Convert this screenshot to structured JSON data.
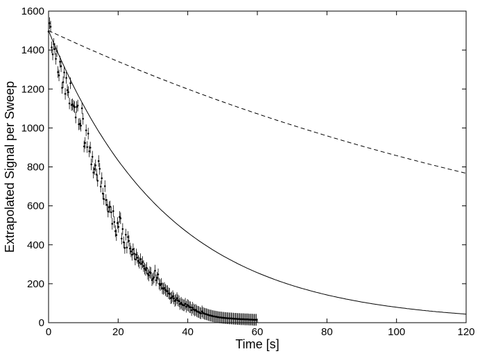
{
  "chart_data": {
    "type": "scatter",
    "title": "",
    "xlabel": "Time [s]",
    "ylabel": "Extrapolated Signal per Sweep",
    "xlim": [
      0,
      120
    ],
    "ylim": [
      0,
      1600
    ],
    "xticks": [
      0,
      20,
      40,
      60,
      80,
      100,
      120
    ],
    "yticks": [
      0,
      200,
      400,
      600,
      800,
      1000,
      1200,
      1400,
      1600
    ],
    "grid": false,
    "legend": "none",
    "colors": {
      "data": "#000000",
      "fit": "#000000",
      "reference": "#000000"
    },
    "series": [
      {
        "kind": "points-with-errorbars",
        "sampling_step_s": 0.3,
        "errorbar_halfwidth": 30,
        "values": [
          1495,
          1538,
          1520,
          1414,
          1378,
          1431,
          1405,
          1355,
          1395,
          1287,
          1270,
          1340,
          1317,
          1206,
          1235,
          1285,
          1175,
          1257,
          1194,
          1184,
          1126,
          1230,
          1118,
          1121,
          1113,
          1107,
          1054,
          1108,
          1115,
          1019,
          1021,
          1012,
          1101,
          1047,
          905,
          923,
          988,
          902,
          971,
          880,
          899,
          813,
          852,
          771,
          789,
          808,
          761,
          729,
          830,
          790,
          699,
          742,
          663,
          635,
          701,
          630,
          605,
          571,
          593,
          596,
          567,
          508,
          573,
          517,
          470,
          450,
          512,
          492,
          543,
          536,
          432,
          481,
          413,
          384,
          452,
          386,
          440,
          420,
          381,
          366,
          349,
          377,
          355,
          325,
          350,
          334,
          317,
          308,
          326,
          302,
          311,
          291,
          278,
          271,
          281,
          251,
          243,
          259,
          255,
          219,
          226,
          233,
          267,
          218,
          230,
          248,
          200,
          193,
          199,
          177,
          174,
          178,
          168,
          162,
          162,
          151,
          148,
          126,
          129,
          136,
          125,
          112,
          117,
          126,
          115,
          110,
          96,
          102,
          94,
          90,
          89,
          97,
          82,
          91,
          87,
          80,
          79,
          65,
          77,
          68,
          63,
          66,
          59,
          56,
          55,
          50,
          48,
          58,
          50,
          47,
          45,
          44,
          42,
          40,
          38,
          37,
          36,
          34,
          33,
          32,
          31,
          30,
          29,
          28,
          27,
          27,
          26,
          25,
          25,
          24,
          24,
          23,
          23,
          22,
          22,
          22,
          21,
          21,
          20,
          20,
          20,
          19,
          19,
          19,
          18,
          18,
          18,
          18,
          17,
          17,
          17,
          17,
          16,
          16,
          16,
          16,
          15,
          15,
          15,
          15
        ]
      },
      {
        "kind": "fit",
        "line_style": "solid",
        "model": "exponential",
        "y0": 1500,
        "tau_s": 34
      },
      {
        "kind": "reference",
        "line_style": "dashed",
        "model": "exponential",
        "y0": 1500,
        "tau_s": 179
      }
    ]
  }
}
